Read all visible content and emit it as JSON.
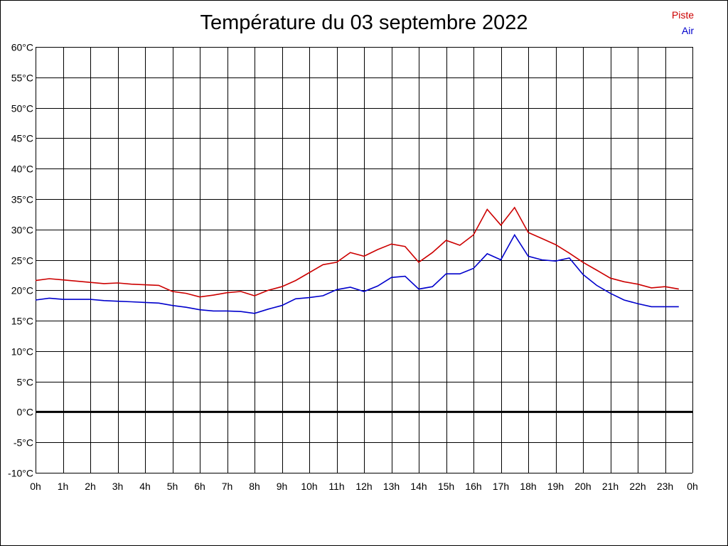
{
  "chart_data": {
    "type": "line",
    "title": "Température du 03 septembre 2022",
    "xlabel": "",
    "ylabel": "",
    "x_tick_labels": [
      "0h",
      "1h",
      "2h",
      "3h",
      "4h",
      "5h",
      "6h",
      "7h",
      "8h",
      "9h",
      "10h",
      "11h",
      "12h",
      "13h",
      "14h",
      "15h",
      "16h",
      "17h",
      "18h",
      "19h",
      "20h",
      "21h",
      "22h",
      "23h",
      "0h"
    ],
    "y_tick_labels": [
      "60°C",
      "55°C",
      "50°C",
      "45°C",
      "40°C",
      "35°C",
      "30°C",
      "25°C",
      "20°C",
      "15°C",
      "10°C",
      "5°C",
      "0°C",
      "-5°C",
      "-10°C"
    ],
    "y_ticks": [
      60,
      55,
      50,
      45,
      40,
      35,
      30,
      25,
      20,
      15,
      10,
      5,
      0,
      -5,
      -10
    ],
    "xlim": [
      0,
      24
    ],
    "ylim": [
      -10,
      60
    ],
    "grid": true,
    "zero_line": true,
    "legend_position": "top-right",
    "x": [
      0,
      0.5,
      1,
      1.5,
      2,
      2.5,
      3,
      3.5,
      4,
      4.5,
      5,
      5.5,
      6,
      6.5,
      7,
      7.5,
      8,
      8.5,
      9,
      9.5,
      10,
      10.5,
      11,
      11.5,
      12,
      12.5,
      13,
      13.5,
      14,
      14.5,
      15,
      15.5,
      16,
      16.5,
      17,
      17.5,
      18,
      18.5,
      19,
      19.5,
      20,
      20.5,
      21,
      21.5,
      22,
      22.5,
      23,
      23.5
    ],
    "series": [
      {
        "name": "Piste",
        "color": "#cc0000",
        "values": [
          21.6,
          21.9,
          21.7,
          21.5,
          21.3,
          21.1,
          21.2,
          21.0,
          20.9,
          20.8,
          19.8,
          19.5,
          18.9,
          19.2,
          19.6,
          19.8,
          19.1,
          20.0,
          20.6,
          21.6,
          22.9,
          24.2,
          24.6,
          26.2,
          25.6,
          26.7,
          27.6,
          27.2,
          24.6,
          26.2,
          28.2,
          27.4,
          29.1,
          33.3,
          30.7,
          33.6,
          29.5,
          28.5,
          27.5,
          26.1,
          24.6,
          23.3,
          22.0,
          21.4,
          21.0,
          20.4,
          20.6,
          20.2
        ]
      },
      {
        "name": "Air",
        "color": "#0000cc",
        "values": [
          18.4,
          18.7,
          18.5,
          18.5,
          18.5,
          18.3,
          18.2,
          18.1,
          18.0,
          17.9,
          17.5,
          17.2,
          16.8,
          16.6,
          16.6,
          16.5,
          16.2,
          16.9,
          17.5,
          18.6,
          18.8,
          19.1,
          20.1,
          20.5,
          19.8,
          20.7,
          22.1,
          22.3,
          20.2,
          20.6,
          22.7,
          22.7,
          23.6,
          26.0,
          25.0,
          29.1,
          25.6,
          25.0,
          24.8,
          25.3,
          22.6,
          20.8,
          19.5,
          18.4,
          17.8,
          17.3,
          17.3,
          17.3
        ]
      }
    ]
  }
}
